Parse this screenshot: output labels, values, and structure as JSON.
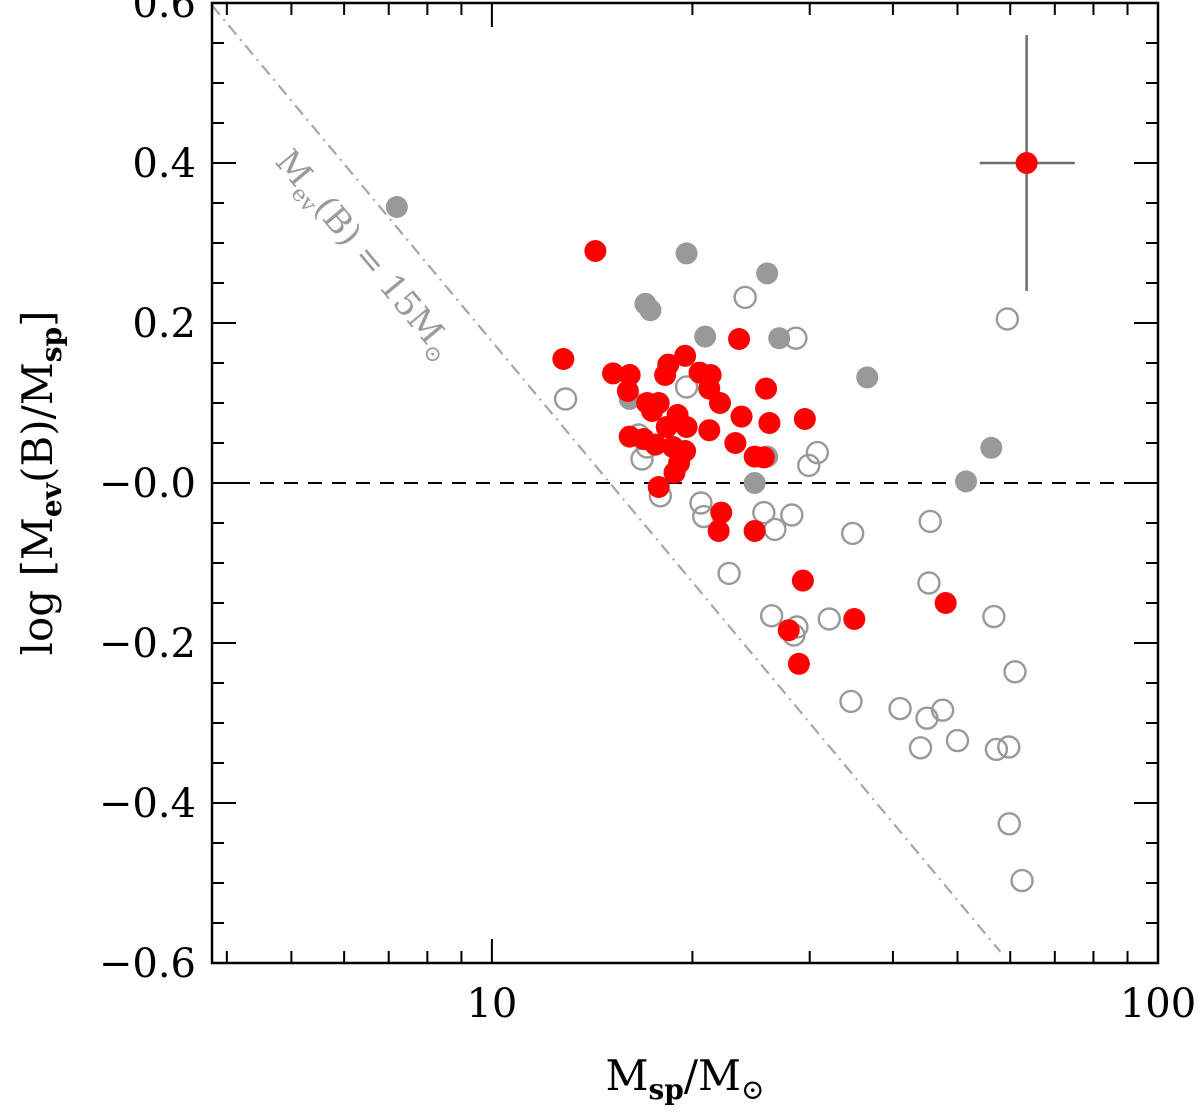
{
  "chart_data": {
    "type": "scatter",
    "x_scale": "log",
    "xlim": [
      3.8,
      100
    ],
    "ylim": [
      -0.6,
      0.6
    ],
    "x_ticks": [
      {
        "value": 10,
        "label": "10"
      },
      {
        "value": 100,
        "label": "100"
      }
    ],
    "y_ticks": [
      {
        "value": 0.6,
        "label": "0.6"
      },
      {
        "value": 0.4,
        "label": "0.4"
      },
      {
        "value": 0.2,
        "label": "0.2"
      },
      {
        "value": 0.0,
        "label": "−0.0"
      },
      {
        "value": -0.2,
        "label": "−0.2"
      },
      {
        "value": -0.4,
        "label": "−0.4"
      },
      {
        "value": -0.6,
        "label": "−0.6"
      }
    ],
    "xlabel": {
      "main": "M",
      "sub": "sp",
      "mid": "/M",
      "sym": "⊙"
    },
    "ylabel": {
      "prefix": "log [M",
      "sub1": "ev",
      "mid": "(B)/M",
      "sub2": "sp",
      "suffix": "]"
    },
    "reference_line": {
      "y": 0.0,
      "style": "dashed"
    },
    "limit_line": {
      "label": {
        "main": "M",
        "sub": "ev",
        "mid": "(B) = 15M",
        "sym": "⊙"
      },
      "points": [
        [
          3.8,
          0.597
        ],
        [
          58,
          -0.586
        ]
      ],
      "style": "dash-dot"
    },
    "error_bar": {
      "x": 63.5,
      "y": 0.4,
      "x_low": 54.0,
      "x_high": 75.0,
      "y_low": 0.24,
      "y_high": 0.56
    },
    "colors": {
      "red": "#ff0000",
      "gray": "#999999",
      "open": "#999999",
      "error": "#6e6e6e"
    },
    "series": [
      {
        "name": "red-filled",
        "marker": "filled",
        "color": "#ff0000",
        "points": [
          [
            14.3,
            0.29
          ],
          [
            12.8,
            0.155
          ],
          [
            15.2,
            0.137
          ],
          [
            16.1,
            0.135
          ],
          [
            16.0,
            0.115
          ],
          [
            18.4,
            0.148
          ],
          [
            19.5,
            0.159
          ],
          [
            18.2,
            0.135
          ],
          [
            20.5,
            0.138
          ],
          [
            21.3,
            0.135
          ],
          [
            21.2,
            0.118
          ],
          [
            23.5,
            0.18
          ],
          [
            17.1,
            0.1
          ],
          [
            17.4,
            0.09
          ],
          [
            17.8,
            0.1
          ],
          [
            18.3,
            0.07
          ],
          [
            19.0,
            0.085
          ],
          [
            19.6,
            0.07
          ],
          [
            22.0,
            0.1
          ],
          [
            23.7,
            0.083
          ],
          [
            25.8,
            0.118
          ],
          [
            26.1,
            0.075
          ],
          [
            29.5,
            0.08
          ],
          [
            21.2,
            0.066
          ],
          [
            16.1,
            0.058
          ],
          [
            16.9,
            0.055
          ],
          [
            17.6,
            0.048
          ],
          [
            18.7,
            0.045
          ],
          [
            19.5,
            0.04
          ],
          [
            23.2,
            0.05
          ],
          [
            24.8,
            0.033
          ],
          [
            25.6,
            0.032
          ],
          [
            19.1,
            0.025
          ],
          [
            18.8,
            0.013
          ],
          [
            17.8,
            -0.005
          ],
          [
            22.1,
            -0.037
          ],
          [
            21.9,
            -0.06
          ],
          [
            24.8,
            -0.06
          ],
          [
            29.3,
            -0.122
          ],
          [
            27.9,
            -0.184
          ],
          [
            28.9,
            -0.226
          ],
          [
            35.0,
            -0.17
          ],
          [
            48.0,
            -0.15
          ],
          [
            63.5,
            0.4
          ]
        ]
      },
      {
        "name": "gray-filled",
        "marker": "filled",
        "color": "#999999",
        "points": [
          [
            7.2,
            0.345
          ],
          [
            19.6,
            0.287
          ],
          [
            25.9,
            0.262
          ],
          [
            17.0,
            0.224
          ],
          [
            17.3,
            0.216
          ],
          [
            20.9,
            0.183
          ],
          [
            27.0,
            0.181
          ],
          [
            36.6,
            0.132
          ],
          [
            16.1,
            0.105
          ],
          [
            25.9,
            0.033
          ],
          [
            24.8,
            0.0
          ],
          [
            51.5,
            0.002
          ],
          [
            56.2,
            0.044
          ]
        ]
      },
      {
        "name": "gray-open",
        "marker": "open",
        "color": "#999999",
        "points": [
          [
            24.0,
            0.232
          ],
          [
            28.6,
            0.181
          ],
          [
            59.4,
            0.205
          ],
          [
            12.9,
            0.105
          ],
          [
            19.6,
            0.12
          ],
          [
            16.6,
            0.06
          ],
          [
            17.1,
            0.045
          ],
          [
            16.8,
            0.03
          ],
          [
            30.8,
            0.038
          ],
          [
            29.9,
            0.022
          ],
          [
            17.9,
            -0.016
          ],
          [
            20.6,
            -0.025
          ],
          [
            20.8,
            -0.042
          ],
          [
            25.6,
            -0.037
          ],
          [
            26.6,
            -0.058
          ],
          [
            28.2,
            -0.04
          ],
          [
            34.8,
            -0.063
          ],
          [
            45.5,
            -0.048
          ],
          [
            22.7,
            -0.113
          ],
          [
            45.3,
            -0.125
          ],
          [
            26.3,
            -0.166
          ],
          [
            28.7,
            -0.18
          ],
          [
            28.4,
            -0.19
          ],
          [
            32.1,
            -0.17
          ],
          [
            56.7,
            -0.167
          ],
          [
            61.0,
            -0.236
          ],
          [
            34.6,
            -0.273
          ],
          [
            41.0,
            -0.282
          ],
          [
            45.0,
            -0.294
          ],
          [
            47.5,
            -0.284
          ],
          [
            44.0,
            -0.331
          ],
          [
            50.0,
            -0.322
          ],
          [
            57.2,
            -0.333
          ],
          [
            59.7,
            -0.33
          ],
          [
            59.8,
            -0.426
          ],
          [
            62.5,
            -0.497
          ]
        ]
      }
    ]
  }
}
